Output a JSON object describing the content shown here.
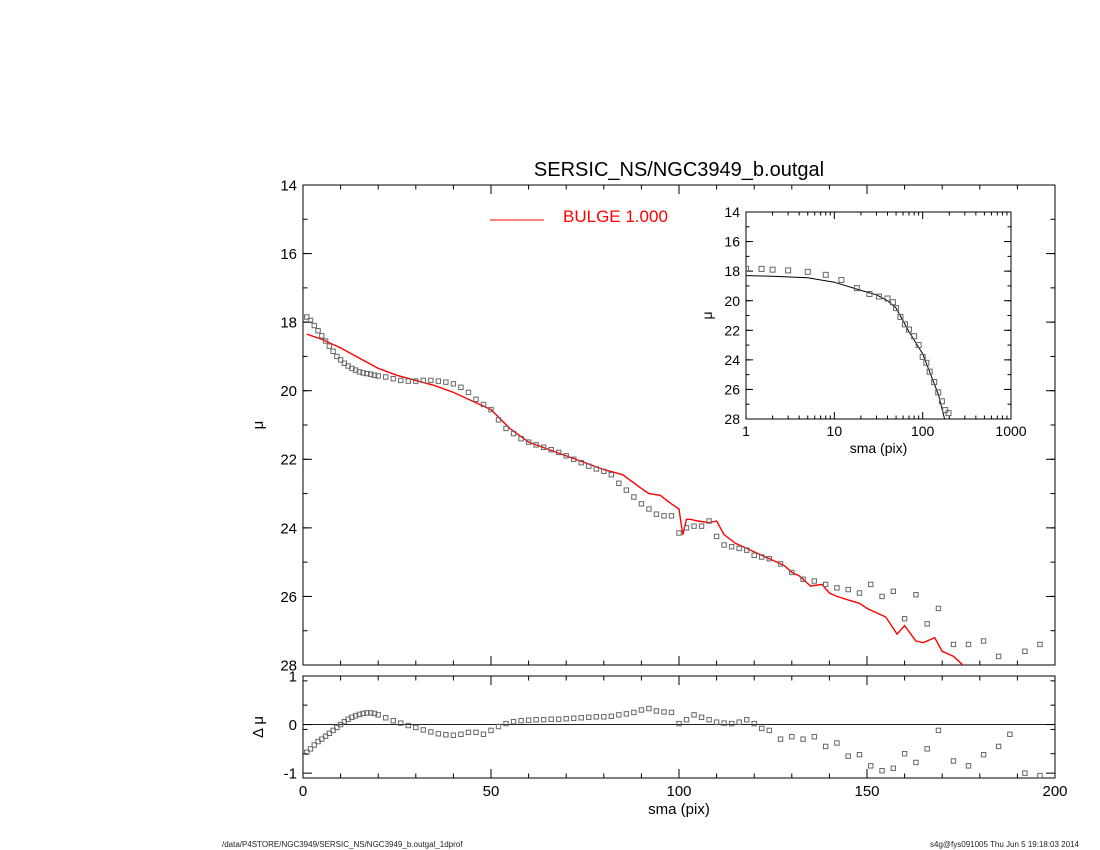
{
  "title": "SERSIC_NS/NGC3949_b.outgal",
  "footer": {
    "left": "/data/P4STORE/NGC3949/SERSIC_NS/NGC3949_b.outgal_1dprof",
    "right": "s4g@fys091005  Thu Jun  5 19:18:03 2014"
  },
  "colors": {
    "model": "#ff0000",
    "data": "#666666",
    "axes": "#000000"
  },
  "chart_data": [
    {
      "panel": "main",
      "type": "scatter",
      "title": "SERSIC_NS/NGC3949_b.outgal",
      "xlabel": "",
      "ylabel": "μ",
      "xlim": [
        0,
        200
      ],
      "ylim": [
        28,
        14
      ],
      "y_inverted": true,
      "xticks": [
        0,
        50,
        100,
        150,
        200
      ],
      "yticks": [
        14,
        16,
        18,
        20,
        22,
        24,
        26,
        28
      ],
      "legend": {
        "position": "top-center",
        "entries": [
          {
            "label": "BULGE  1.000",
            "color": "#ff0000"
          }
        ]
      },
      "series": [
        {
          "name": "BULGE  1.000",
          "kind": "line",
          "x": [
            1,
            5,
            10,
            15,
            20,
            25,
            30,
            35,
            40,
            45,
            50,
            55,
            60,
            65,
            70,
            75,
            80,
            85,
            90,
            92,
            95,
            98,
            100,
            101,
            102,
            103,
            105,
            108,
            110,
            112,
            115,
            118,
            120,
            122,
            125,
            128,
            130,
            132,
            135,
            138,
            140,
            142,
            145,
            148,
            150,
            152,
            155,
            158,
            160,
            163,
            165,
            168,
            170,
            173,
            175,
            177
          ],
          "y": [
            18.35,
            18.5,
            18.75,
            19.05,
            19.35,
            19.55,
            19.7,
            19.85,
            20.05,
            20.3,
            20.55,
            21.1,
            21.5,
            21.7,
            21.9,
            22.1,
            22.3,
            22.45,
            22.85,
            23.0,
            23.05,
            23.3,
            23.45,
            24.2,
            23.75,
            23.75,
            23.8,
            23.85,
            23.8,
            24.2,
            24.45,
            24.6,
            24.7,
            24.8,
            24.95,
            25.1,
            25.3,
            25.4,
            25.7,
            25.65,
            25.9,
            26.0,
            26.1,
            26.2,
            26.35,
            26.45,
            26.6,
            27.1,
            26.85,
            27.3,
            27.35,
            27.2,
            27.6,
            27.75,
            27.95,
            28.15
          ]
        },
        {
          "name": "",
          "kind": "points",
          "x": [
            1,
            2,
            3,
            4,
            5,
            6,
            7,
            8,
            9,
            10,
            11,
            12,
            13,
            14,
            15,
            16,
            17,
            18,
            19,
            20,
            22,
            24,
            26,
            28,
            30,
            32,
            34,
            36,
            38,
            40,
            42,
            44,
            46,
            48,
            50,
            52,
            54,
            56,
            58,
            60,
            62,
            64,
            66,
            68,
            70,
            72,
            74,
            76,
            78,
            80,
            82,
            84,
            86,
            88,
            90,
            92,
            94,
            96,
            98,
            100,
            102,
            104,
            106,
            108,
            110,
            112,
            114,
            116,
            118,
            120,
            122,
            124,
            127,
            130,
            133,
            136,
            139,
            142,
            145,
            148,
            151,
            154,
            157,
            160,
            163,
            166,
            169,
            173,
            177,
            181,
            185,
            192,
            196
          ],
          "y": [
            17.85,
            17.95,
            18.1,
            18.25,
            18.4,
            18.55,
            18.7,
            18.85,
            19.0,
            19.1,
            19.2,
            19.28,
            19.35,
            19.4,
            19.45,
            19.48,
            19.5,
            19.52,
            19.55,
            19.57,
            19.6,
            19.65,
            19.7,
            19.72,
            19.72,
            19.7,
            19.7,
            19.72,
            19.75,
            19.8,
            19.9,
            20.05,
            20.25,
            20.4,
            20.55,
            20.85,
            21.1,
            21.25,
            21.4,
            21.5,
            21.58,
            21.65,
            21.72,
            21.8,
            21.9,
            22.0,
            22.1,
            22.2,
            22.28,
            22.35,
            22.45,
            22.7,
            22.9,
            23.1,
            23.3,
            23.45,
            23.6,
            23.65,
            23.65,
            24.15,
            24.0,
            23.95,
            23.95,
            23.8,
            24.25,
            24.5,
            24.55,
            24.6,
            24.65,
            24.8,
            24.85,
            24.9,
            25.05,
            25.3,
            25.5,
            25.55,
            25.65,
            25.75,
            25.8,
            25.9,
            25.65,
            26.0,
            25.85,
            26.65,
            25.95,
            26.8,
            26.35,
            27.4,
            27.4,
            27.3,
            27.75,
            27.6,
            27.4
          ]
        }
      ]
    },
    {
      "panel": "residual",
      "type": "scatter",
      "xlabel": "sma (pix)",
      "ylabel": "Δ μ",
      "xlim": [
        0,
        200
      ],
      "ylim": [
        -1.1,
        1.0
      ],
      "xticks": [
        0,
        50,
        100,
        150,
        200
      ],
      "yticks": [
        -1,
        0,
        1
      ],
      "zero_line": true,
      "series": [
        {
          "name": "",
          "kind": "points",
          "x": [
            1,
            2,
            3,
            4,
            5,
            6,
            7,
            8,
            9,
            10,
            11,
            12,
            13,
            14,
            15,
            16,
            17,
            18,
            19,
            20,
            22,
            24,
            26,
            28,
            30,
            32,
            34,
            36,
            38,
            40,
            42,
            44,
            46,
            48,
            50,
            52,
            54,
            56,
            58,
            60,
            62,
            64,
            66,
            68,
            70,
            72,
            74,
            76,
            78,
            80,
            82,
            84,
            86,
            88,
            90,
            92,
            94,
            96,
            98,
            100,
            102,
            104,
            106,
            108,
            110,
            112,
            114,
            116,
            118,
            120,
            122,
            124,
            127,
            130,
            133,
            136,
            139,
            142,
            145,
            148,
            151,
            154,
            157,
            160,
            163,
            166,
            169,
            173,
            177,
            181,
            185,
            188,
            192,
            196
          ],
          "y": [
            -0.57,
            -0.5,
            -0.42,
            -0.35,
            -0.3,
            -0.24,
            -0.18,
            -0.12,
            -0.06,
            0.0,
            0.06,
            0.11,
            0.15,
            0.18,
            0.21,
            0.23,
            0.24,
            0.24,
            0.23,
            0.2,
            0.14,
            0.08,
            0.03,
            -0.02,
            -0.06,
            -0.11,
            -0.15,
            -0.19,
            -0.21,
            -0.22,
            -0.2,
            -0.16,
            -0.16,
            -0.2,
            -0.12,
            -0.04,
            0.02,
            0.06,
            0.08,
            0.09,
            0.1,
            0.1,
            0.11,
            0.11,
            0.12,
            0.13,
            0.14,
            0.15,
            0.16,
            0.16,
            0.17,
            0.2,
            0.22,
            0.25,
            0.3,
            0.33,
            0.28,
            0.26,
            0.25,
            0.02,
            0.1,
            0.2,
            0.15,
            0.1,
            0.05,
            0.03,
            0.02,
            0.05,
            0.1,
            0.02,
            -0.08,
            -0.12,
            -0.3,
            -0.25,
            -0.3,
            -0.25,
            -0.45,
            -0.38,
            -0.65,
            -0.62,
            -0.85,
            -0.95,
            -0.9,
            -0.6,
            -0.78,
            -0.5,
            -0.12,
            -0.75,
            -0.85,
            -0.62,
            -0.45,
            -0.2,
            -1.0,
            -1.05
          ]
        }
      ]
    },
    {
      "panel": "inset",
      "type": "scatter",
      "xlabel": "sma (pix)",
      "ylabel": "μ",
      "x_scale": "log",
      "xlim": [
        1,
        1000
      ],
      "ylim": [
        28,
        14
      ],
      "y_inverted": true,
      "xticks": [
        1,
        10,
        100,
        1000
      ],
      "xtick_labels": [
        "1",
        "10",
        "100",
        "1000"
      ],
      "yticks": [
        14,
        16,
        18,
        20,
        22,
        24,
        26,
        28
      ],
      "series": [
        {
          "name": "",
          "kind": "line",
          "x": [
            1,
            2,
            5,
            10,
            20,
            30,
            40,
            50,
            70,
            100,
            150,
            177
          ],
          "y": [
            18.3,
            18.35,
            18.45,
            18.75,
            19.3,
            19.6,
            20.0,
            20.5,
            22.1,
            23.6,
            26.3,
            28.0
          ]
        },
        {
          "name": "",
          "kind": "points",
          "x": [
            1,
            1.5,
            2,
            3,
            5,
            8,
            12,
            18,
            25,
            32,
            40,
            46,
            50,
            56,
            63,
            70,
            80,
            90,
            100,
            110,
            120,
            135,
            150,
            165,
            180,
            196
          ],
          "y": [
            17.85,
            17.85,
            17.9,
            17.95,
            18.05,
            18.25,
            18.6,
            19.15,
            19.55,
            19.72,
            19.85,
            20.1,
            20.5,
            21.1,
            21.6,
            21.95,
            22.4,
            23.0,
            23.8,
            24.2,
            24.8,
            25.5,
            26.2,
            26.8,
            27.4,
            27.6
          ]
        }
      ]
    }
  ]
}
